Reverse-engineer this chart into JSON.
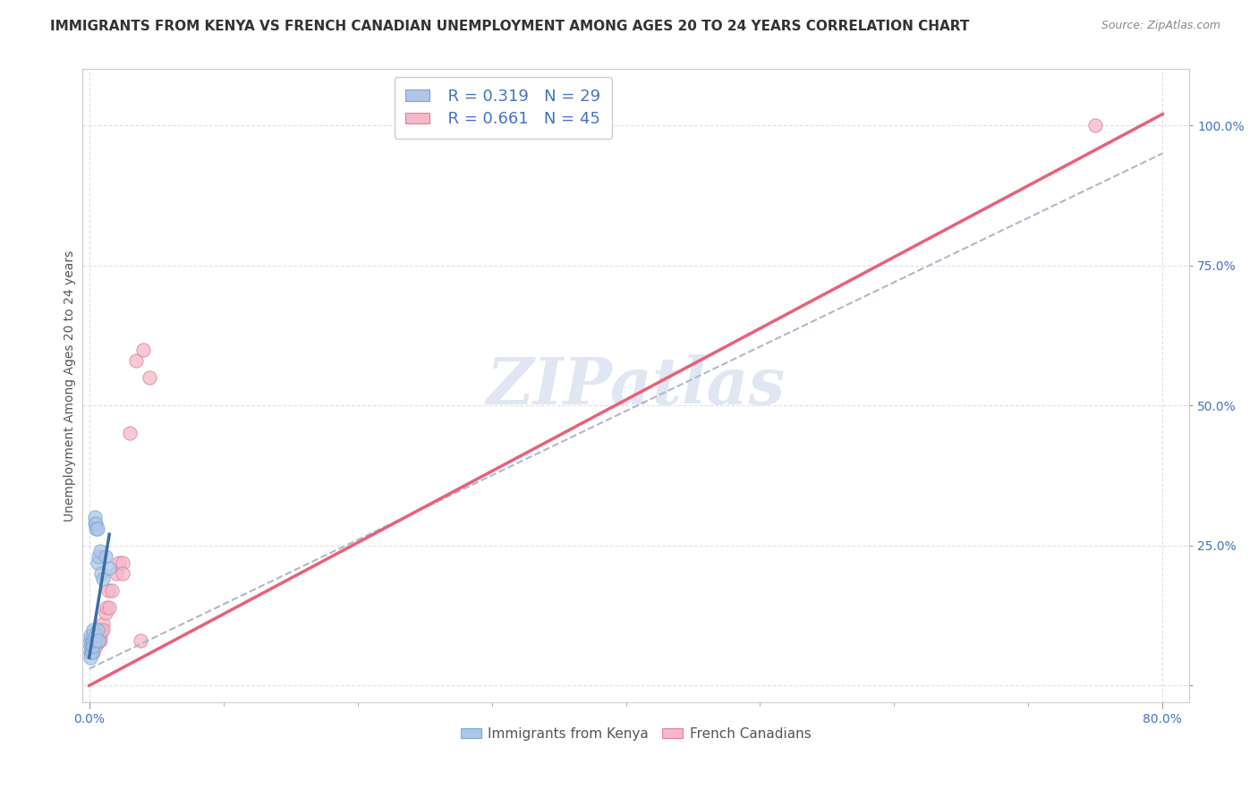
{
  "title": "IMMIGRANTS FROM KENYA VS FRENCH CANADIAN UNEMPLOYMENT AMONG AGES 20 TO 24 YEARS CORRELATION CHART",
  "source": "Source: ZipAtlas.com",
  "ylabel": "Unemployment Among Ages 20 to 24 years",
  "xlim": [
    -0.005,
    0.82
  ],
  "ylim": [
    -0.03,
    1.1
  ],
  "xtick_positions": [
    0.0,
    0.8
  ],
  "xticklabels": [
    "0.0%",
    "80.0%"
  ],
  "ytick_positions": [
    0.0,
    0.25,
    0.5,
    0.75,
    1.0
  ],
  "yticklabels": [
    "",
    "25.0%",
    "50.0%",
    "75.0%",
    "100.0%"
  ],
  "legend_r1": "R = 0.319",
  "legend_n1": "N = 29",
  "legend_r2": "R = 0.661",
  "legend_n2": "N = 45",
  "legend_label1": "Immigrants from Kenya",
  "legend_label2": "French Canadians",
  "watermark": "ZIPatlas",
  "blue_color": "#aec6e8",
  "blue_edge": "#7aaad0",
  "blue_line_color": "#3a6fa8",
  "pink_color": "#f4b8c8",
  "pink_edge": "#e080a0",
  "pink_line_color": "#e8607a",
  "grey_dash_color": "#b0b8c8",
  "r_color": "#4472c4",
  "kenya_scatter_x": [
    0.001,
    0.001,
    0.001,
    0.001,
    0.001,
    0.002,
    0.002,
    0.002,
    0.002,
    0.003,
    0.003,
    0.003,
    0.003,
    0.004,
    0.004,
    0.004,
    0.005,
    0.005,
    0.005,
    0.006,
    0.006,
    0.006,
    0.007,
    0.007,
    0.008,
    0.009,
    0.01,
    0.012,
    0.015
  ],
  "kenya_scatter_y": [
    0.06,
    0.07,
    0.08,
    0.05,
    0.09,
    0.07,
    0.08,
    0.07,
    0.06,
    0.08,
    0.09,
    0.1,
    0.07,
    0.29,
    0.3,
    0.08,
    0.29,
    0.28,
    0.09,
    0.28,
    0.1,
    0.22,
    0.23,
    0.08,
    0.24,
    0.2,
    0.19,
    0.23,
    0.21
  ],
  "french_scatter_x": [
    0.001,
    0.001,
    0.001,
    0.002,
    0.002,
    0.002,
    0.002,
    0.002,
    0.003,
    0.003,
    0.003,
    0.003,
    0.003,
    0.004,
    0.004,
    0.005,
    0.005,
    0.005,
    0.006,
    0.006,
    0.006,
    0.007,
    0.007,
    0.007,
    0.008,
    0.008,
    0.008,
    0.009,
    0.01,
    0.01,
    0.012,
    0.013,
    0.014,
    0.015,
    0.017,
    0.02,
    0.022,
    0.025,
    0.025,
    0.03,
    0.035,
    0.038,
    0.04,
    0.045,
    0.75
  ],
  "french_scatter_y": [
    0.06,
    0.07,
    0.08,
    0.06,
    0.07,
    0.08,
    0.07,
    0.06,
    0.08,
    0.06,
    0.07,
    0.08,
    0.07,
    0.08,
    0.07,
    0.09,
    0.08,
    0.07,
    0.09,
    0.08,
    0.09,
    0.1,
    0.09,
    0.08,
    0.1,
    0.09,
    0.08,
    0.1,
    0.11,
    0.1,
    0.13,
    0.14,
    0.17,
    0.14,
    0.17,
    0.2,
    0.22,
    0.22,
    0.2,
    0.45,
    0.58,
    0.08,
    0.6,
    0.55,
    1.0
  ],
  "kenya_trendline_x": [
    0.0,
    0.015
  ],
  "kenya_trendline_y": [
    0.05,
    0.27
  ],
  "pink_trendline_x": [
    0.0,
    0.8
  ],
  "pink_trendline_y": [
    0.0,
    1.02
  ],
  "grey_trendline_x": [
    0.0,
    0.8
  ],
  "grey_trendline_y": [
    0.03,
    0.95
  ],
  "background_color": "#ffffff",
  "grid_color": "#e0e0e0",
  "grid_style": "--",
  "title_fontsize": 11,
  "axis_label_fontsize": 10,
  "tick_fontsize": 10,
  "legend_fontsize": 13,
  "watermark_fontsize": 52,
  "scatter_size": 120
}
